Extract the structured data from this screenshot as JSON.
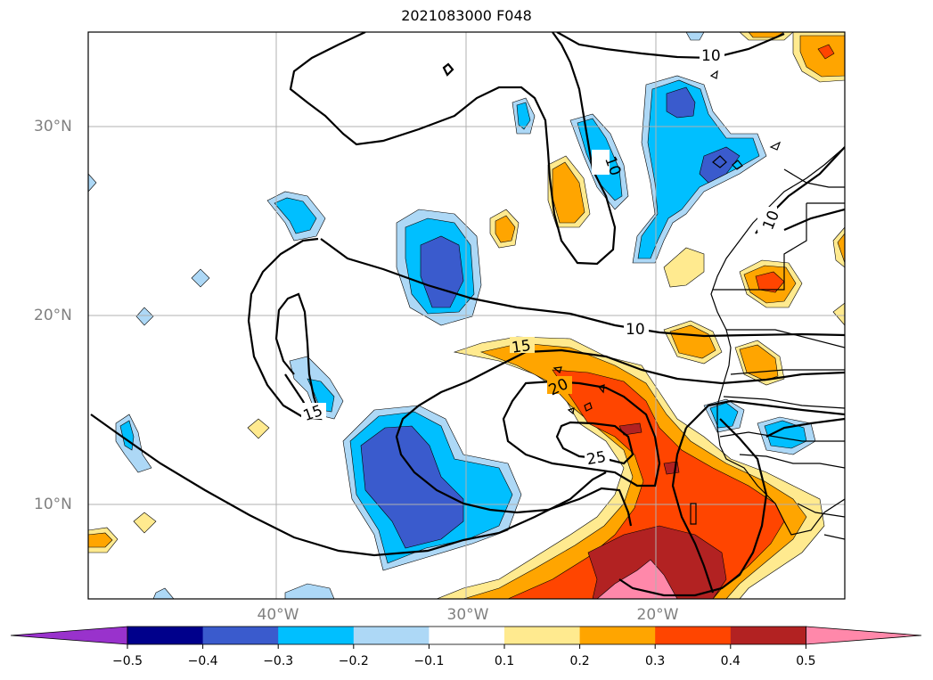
{
  "title": "2021083000 F048",
  "lat_labels": [
    {
      "id": "30n",
      "text": "30°N"
    },
    {
      "id": "20n",
      "text": "20°N"
    },
    {
      "id": "10n",
      "text": "10°N"
    }
  ],
  "lon_labels": [
    {
      "id": "40w",
      "text": "40°W"
    },
    {
      "id": "30w",
      "text": "30°W"
    },
    {
      "id": "20w",
      "text": "20°W"
    }
  ],
  "contour_labels": [
    "10",
    "10",
    "10",
    "15",
    "15",
    "20",
    "25"
  ],
  "colorbar": {
    "ticks": [
      "−0.5",
      "−0.4",
      "−0.3",
      "−0.2",
      "−0.1",
      "0.1",
      "0.2",
      "0.3",
      "0.4",
      "0.5"
    ],
    "colors": [
      "#9932cc",
      "#00008b",
      "#3a5bcd",
      "#00bfff",
      "#add8f6",
      "#ffffff",
      "#ffea8f",
      "#ffa500",
      "#ff4500",
      "#b22222",
      "#ff88aa"
    ]
  }
}
